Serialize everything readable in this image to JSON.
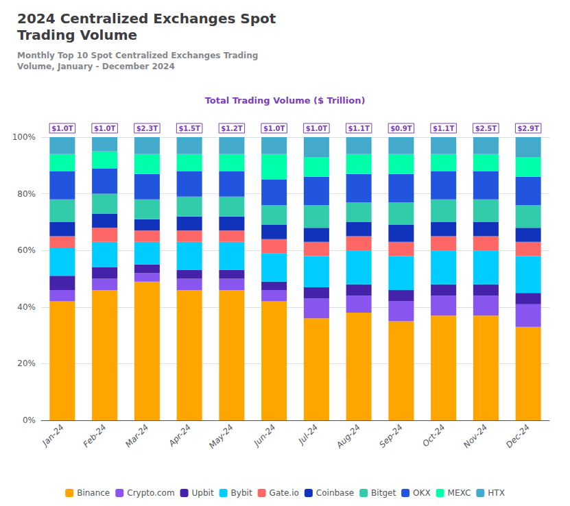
{
  "chart_data": {
    "type": "bar",
    "title": "2024 Centralized Exchanges Spot\nTrading Volume",
    "subtitle": "Monthly Top 10 Spot Centralized Exchanges Trading\nVolume, January - December 2024",
    "stacked": true,
    "grid": true,
    "legend": "bottom",
    "categories": [
      "Jan-24",
      "Feb-24",
      "Mar-24",
      "Apr-24",
      "May-24",
      "Jun-24",
      "Jul-24",
      "Aug-24",
      "Sep-24",
      "Oct-24",
      "Nov-24",
      "Dec-24"
    ],
    "ylim": [
      0,
      100
    ],
    "yticks": [
      {
        "value": 0,
        "label": "0%"
      },
      {
        "value": 20,
        "label": "20%"
      },
      {
        "value": 40,
        "label": "40%"
      },
      {
        "value": 60,
        "label": "60%"
      },
      {
        "value": 80,
        "label": "80%"
      },
      {
        "value": 100,
        "label": "100%"
      }
    ],
    "series": [
      {
        "name": "Binance",
        "color": "#FFA500",
        "values": [
          42,
          46,
          49,
          46,
          46,
          42,
          36,
          38,
          35,
          37,
          37,
          33
        ]
      },
      {
        "name": "Crypto.com",
        "color": "#8855EE",
        "values": [
          4,
          4,
          3,
          4,
          4,
          4,
          7,
          6,
          7,
          7,
          7,
          8
        ]
      },
      {
        "name": "Upbit",
        "color": "#4422AA",
        "values": [
          5,
          4,
          3,
          3,
          3,
          3,
          4,
          4,
          4,
          4,
          4,
          4
        ]
      },
      {
        "name": "Bybit",
        "color": "#00CCFF",
        "values": [
          10,
          9,
          8,
          10,
          10,
          10,
          11,
          12,
          12,
          12,
          12,
          13
        ]
      },
      {
        "name": "Gate.io",
        "color": "#FF6666",
        "values": [
          4,
          5,
          4,
          4,
          4,
          5,
          5,
          5,
          5,
          5,
          5,
          5
        ]
      },
      {
        "name": "Coinbase",
        "color": "#1133BB",
        "values": [
          5,
          5,
          4,
          5,
          5,
          5,
          5,
          5,
          6,
          5,
          5,
          5
        ]
      },
      {
        "name": "Bitget",
        "color": "#33CCAA",
        "values": [
          8,
          7,
          7,
          7,
          7,
          7,
          8,
          7,
          8,
          8,
          8,
          8
        ]
      },
      {
        "name": "OKX",
        "color": "#2255DD",
        "values": [
          10,
          9,
          9,
          9,
          9,
          9,
          10,
          10,
          10,
          10,
          10,
          10
        ]
      },
      {
        "name": "MEXC",
        "color": "#00FFAA",
        "values": [
          6,
          6,
          7,
          6,
          6,
          9,
          7,
          7,
          7,
          6,
          6,
          7
        ]
      },
      {
        "name": "HTX",
        "color": "#44AACC",
        "values": [
          6,
          5,
          6,
          6,
          6,
          6,
          7,
          6,
          6,
          6,
          6,
          7
        ]
      }
    ],
    "annotations": [
      {
        "text": "Total Trading Volume ($ Trillion)"
      },
      {
        "category": "Jan-24",
        "text": "$1.0T"
      },
      {
        "category": "Feb-24",
        "text": "$1.0T"
      },
      {
        "category": "Mar-24",
        "text": "$2.3T"
      },
      {
        "category": "Apr-24",
        "text": "$1.5T"
      },
      {
        "category": "May-24",
        "text": "$1.2T"
      },
      {
        "category": "Jun-24",
        "text": "$1.0T"
      },
      {
        "category": "Jul-24",
        "text": "$1.0T"
      },
      {
        "category": "Aug-24",
        "text": "$1.1T"
      },
      {
        "category": "Sep-24",
        "text": "$0.9T"
      },
      {
        "category": "Oct-24",
        "text": "$1.1T"
      },
      {
        "category": "Nov-24",
        "text": "$2.5T"
      },
      {
        "category": "Dec-24",
        "text": "$2.9T"
      }
    ]
  }
}
